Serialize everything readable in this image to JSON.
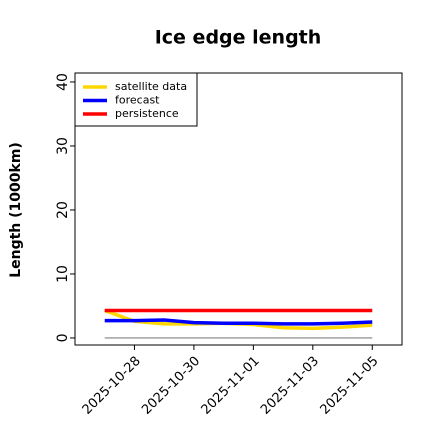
{
  "chart_data": {
    "type": "line",
    "title": "Ice edge length",
    "y_label": "Length (1000km)",
    "x": [
      "2025-10-27",
      "2025-10-28",
      "2025-10-29",
      "2025-10-30",
      "2025-10-31",
      "2025-11-01",
      "2025-11-02",
      "2025-11-03",
      "2025-11-04",
      "2025-11-05"
    ],
    "series": [
      {
        "name": "satellite data",
        "color": "#ffd700",
        "values": [
          4.3,
          2.6,
          2.2,
          2.2,
          2.3,
          2.1,
          1.6,
          1.5,
          1.7,
          2.0
        ]
      },
      {
        "name": "forecast",
        "color": "#0000ff",
        "values": [
          2.7,
          2.7,
          2.8,
          2.4,
          2.3,
          2.3,
          2.2,
          2.2,
          2.3,
          2.5
        ]
      },
      {
        "name": "persistence",
        "color": "#ff0000",
        "values": [
          4.3,
          4.3,
          4.3,
          4.3,
          4.3,
          4.3,
          4.3,
          4.3,
          4.3,
          4.3
        ]
      }
    ],
    "xlim": [
      "2025-10-26",
      "2025-11-06"
    ],
    "xticks": [
      "2025-10-28",
      "2025-10-30",
      "2025-11-01",
      "2025-11-03",
      "2025-11-05"
    ],
    "xtick_colors": [
      "#228b22",
      "#000000",
      "#000000",
      "#000000",
      "#000000"
    ],
    "ylim": [
      -1.1,
      41.4
    ],
    "yticks": [
      0,
      10,
      20,
      30,
      40
    ],
    "legend": "upper left",
    "zero_line_color": "#808080"
  }
}
